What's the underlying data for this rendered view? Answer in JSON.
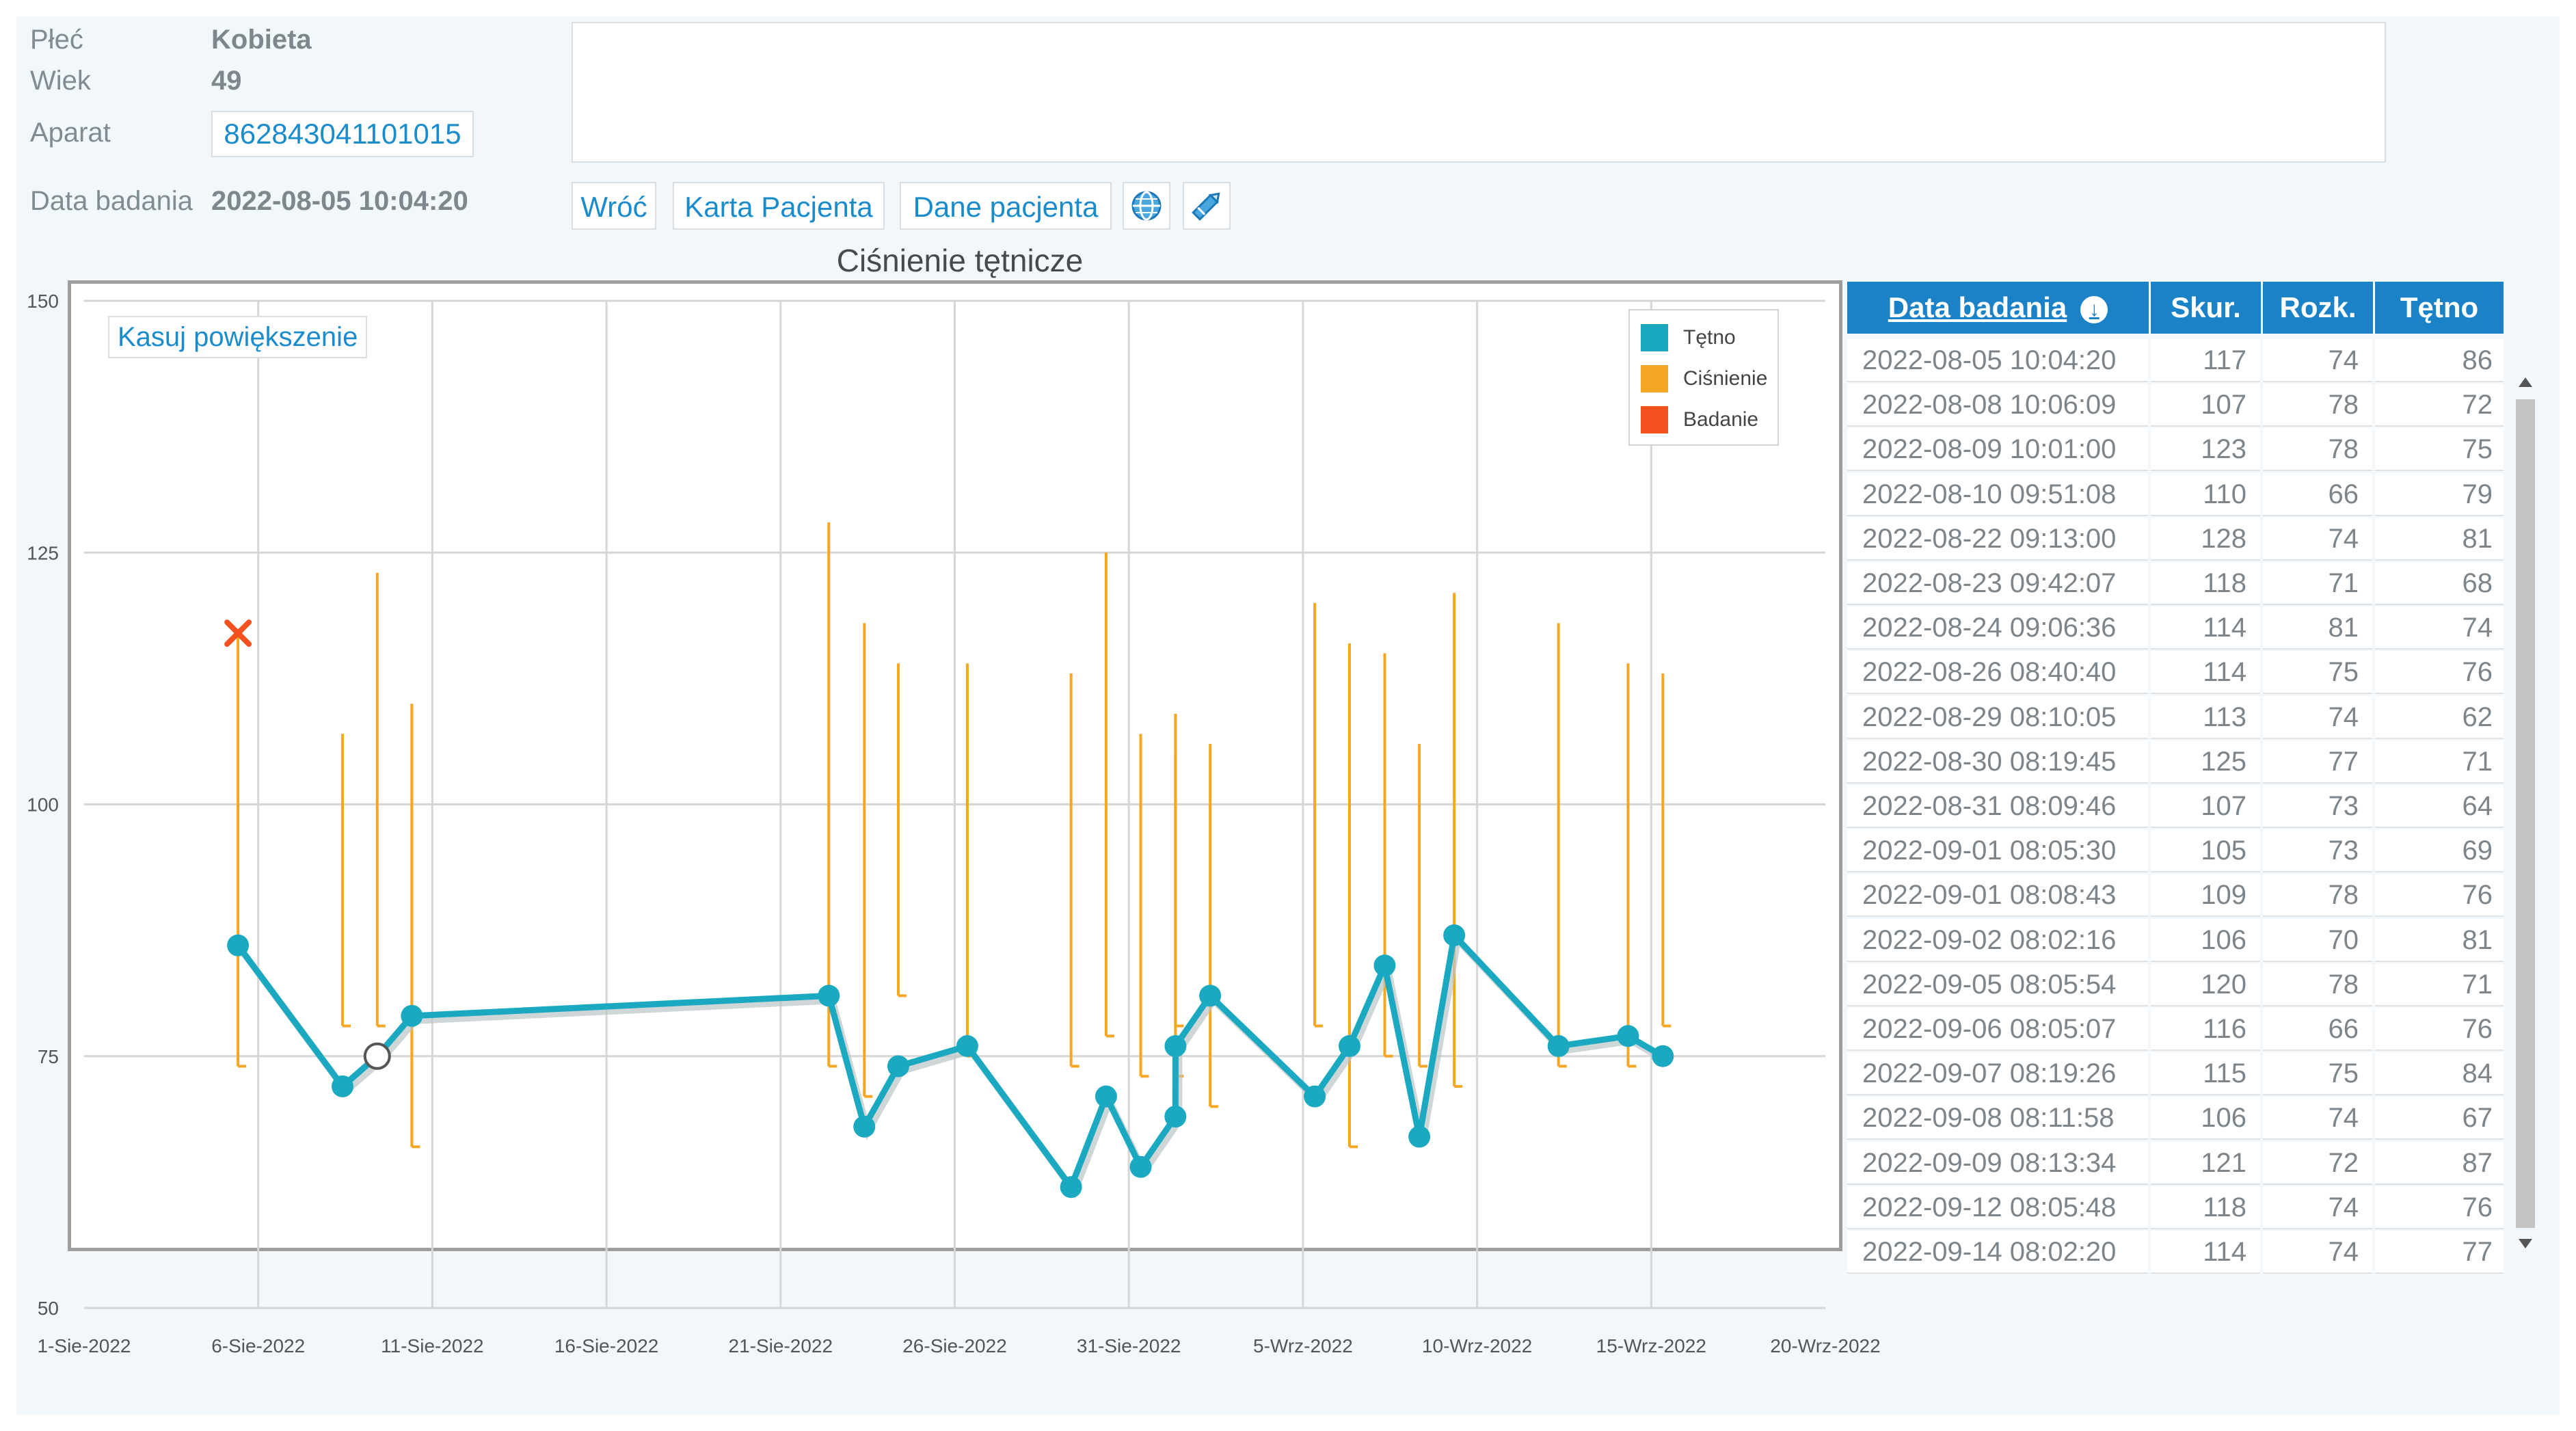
{
  "patient": {
    "sex_label": "Płeć",
    "sex_value": "Kobieta",
    "age_label": "Wiek",
    "age_value": "49",
    "device_label": "Aparat",
    "device_value": "862843041101015",
    "exam_date_label": "Data badania",
    "exam_date_value": "2022-08-05 10:04:20"
  },
  "toolbar": {
    "back": "Wróć",
    "patient_card": "Karta Pacjenta",
    "patient_data": "Dane pacjenta",
    "globe_icon": "globe-icon",
    "pencil_icon": "pencil-icon"
  },
  "chart": {
    "reset_zoom": "Kasuj powiększenie"
  },
  "chart_data": {
    "type": "line",
    "title": "Ciśnienie tętnicze",
    "ylim": [
      50,
      150
    ],
    "y_ticks": [
      "150",
      "125",
      "100",
      "75",
      "50"
    ],
    "x_ticks": [
      "1-Sie-2022",
      "6-Sie-2022",
      "11-Sie-2022",
      "16-Sie-2022",
      "21-Sie-2022",
      "26-Sie-2022",
      "31-Sie-2022",
      "5-Wrz-2022",
      "10-Wrz-2022",
      "15-Wrz-2022",
      "20-Wrz-2022"
    ],
    "legend_position": "top-right",
    "grid": true,
    "series": [
      {
        "name": "Tętno",
        "color": "#1aa9c0",
        "kind": "line-with-markers",
        "points": [
          {
            "x": "2022-08-05 10:04:20",
            "y": 86
          },
          {
            "x": "2022-08-08 10:06:09",
            "y": 72
          },
          {
            "x": "2022-08-09 10:01:00",
            "y": 75
          },
          {
            "x": "2022-08-10 09:51:08",
            "y": 79
          },
          {
            "x": "2022-08-22 09:13:00",
            "y": 81
          },
          {
            "x": "2022-08-23 09:42:07",
            "y": 68
          },
          {
            "x": "2022-08-24 09:06:36",
            "y": 74
          },
          {
            "x": "2022-08-26 08:40:40",
            "y": 76
          },
          {
            "x": "2022-08-29 08:10:05",
            "y": 62
          },
          {
            "x": "2022-08-30 08:19:45",
            "y": 71
          },
          {
            "x": "2022-08-31 08:09:46",
            "y": 64
          },
          {
            "x": "2022-09-01 08:05:30",
            "y": 69
          },
          {
            "x": "2022-09-01 08:08:43",
            "y": 76
          },
          {
            "x": "2022-09-02 08:02:16",
            "y": 81
          },
          {
            "x": "2022-09-05 08:05:54",
            "y": 71
          },
          {
            "x": "2022-09-06 08:05:07",
            "y": 76
          },
          {
            "x": "2022-09-07 08:19:26",
            "y": 84
          },
          {
            "x": "2022-09-08 08:11:58",
            "y": 67
          },
          {
            "x": "2022-09-09 08:13:34",
            "y": 87
          },
          {
            "x": "2022-09-12 08:05:48",
            "y": 76
          },
          {
            "x": "2022-09-14 08:02:20",
            "y": 77
          },
          {
            "x": "2022-09-15 08:00:00",
            "y": 75
          }
        ]
      },
      {
        "name": "Ciśnienie",
        "color": "#f5a623",
        "kind": "range-bars",
        "points": [
          {
            "x": "2022-08-05 10:04:20",
            "high": 117,
            "low": 74
          },
          {
            "x": "2022-08-08 10:06:09",
            "high": 107,
            "low": 78
          },
          {
            "x": "2022-08-09 10:01:00",
            "high": 123,
            "low": 78
          },
          {
            "x": "2022-08-10 09:51:08",
            "high": 110,
            "low": 66
          },
          {
            "x": "2022-08-22 09:13:00",
            "high": 128,
            "low": 74
          },
          {
            "x": "2022-08-23 09:42:07",
            "high": 118,
            "low": 71
          },
          {
            "x": "2022-08-24 09:06:36",
            "high": 114,
            "low": 81
          },
          {
            "x": "2022-08-26 08:40:40",
            "high": 114,
            "low": 75
          },
          {
            "x": "2022-08-29 08:10:05",
            "high": 113,
            "low": 74
          },
          {
            "x": "2022-08-30 08:19:45",
            "high": 125,
            "low": 77
          },
          {
            "x": "2022-08-31 08:09:46",
            "high": 107,
            "low": 73
          },
          {
            "x": "2022-09-01 08:05:30",
            "high": 105,
            "low": 73
          },
          {
            "x": "2022-09-01 08:08:43",
            "high": 109,
            "low": 78
          },
          {
            "x": "2022-09-02 08:02:16",
            "high": 106,
            "low": 70
          },
          {
            "x": "2022-09-05 08:05:54",
            "high": 120,
            "low": 78
          },
          {
            "x": "2022-09-06 08:05:07",
            "high": 116,
            "low": 66
          },
          {
            "x": "2022-09-07 08:19:26",
            "high": 115,
            "low": 75
          },
          {
            "x": "2022-09-08 08:11:58",
            "high": 106,
            "low": 74
          },
          {
            "x": "2022-09-09 08:13:34",
            "high": 121,
            "low": 72
          },
          {
            "x": "2022-09-12 08:05:48",
            "high": 118,
            "low": 74
          },
          {
            "x": "2022-09-14 08:02:20",
            "high": 114,
            "low": 74
          },
          {
            "x": "2022-09-15 08:00:00",
            "high": 113,
            "low": 78
          }
        ]
      },
      {
        "name": "Badanie",
        "color": "#f4511e",
        "kind": "marker",
        "points": [
          {
            "x": "2022-08-05 10:04:20",
            "y": 117
          }
        ]
      }
    ],
    "selected_point": {
      "series": "Tętno",
      "x": "2022-08-09 10:01:00",
      "y": 75
    }
  },
  "table": {
    "headers": {
      "date": "Data badania",
      "sys": "Skur.",
      "dia": "Rozk.",
      "hr": "Tętno"
    },
    "rows": [
      {
        "date": "2022-08-05 10:04:20",
        "sys": "117",
        "dia": "74",
        "hr": "86"
      },
      {
        "date": "2022-08-08 10:06:09",
        "sys": "107",
        "dia": "78",
        "hr": "72"
      },
      {
        "date": "2022-08-09 10:01:00",
        "sys": "123",
        "dia": "78",
        "hr": "75"
      },
      {
        "date": "2022-08-10 09:51:08",
        "sys": "110",
        "dia": "66",
        "hr": "79"
      },
      {
        "date": "2022-08-22 09:13:00",
        "sys": "128",
        "dia": "74",
        "hr": "81"
      },
      {
        "date": "2022-08-23 09:42:07",
        "sys": "118",
        "dia": "71",
        "hr": "68"
      },
      {
        "date": "2022-08-24 09:06:36",
        "sys": "114",
        "dia": "81",
        "hr": "74"
      },
      {
        "date": "2022-08-26 08:40:40",
        "sys": "114",
        "dia": "75",
        "hr": "76"
      },
      {
        "date": "2022-08-29 08:10:05",
        "sys": "113",
        "dia": "74",
        "hr": "62"
      },
      {
        "date": "2022-08-30 08:19:45",
        "sys": "125",
        "dia": "77",
        "hr": "71"
      },
      {
        "date": "2022-08-31 08:09:46",
        "sys": "107",
        "dia": "73",
        "hr": "64"
      },
      {
        "date": "2022-09-01 08:05:30",
        "sys": "105",
        "dia": "73",
        "hr": "69"
      },
      {
        "date": "2022-09-01 08:08:43",
        "sys": "109",
        "dia": "78",
        "hr": "76"
      },
      {
        "date": "2022-09-02 08:02:16",
        "sys": "106",
        "dia": "70",
        "hr": "81"
      },
      {
        "date": "2022-09-05 08:05:54",
        "sys": "120",
        "dia": "78",
        "hr": "71"
      },
      {
        "date": "2022-09-06 08:05:07",
        "sys": "116",
        "dia": "66",
        "hr": "76"
      },
      {
        "date": "2022-09-07 08:19:26",
        "sys": "115",
        "dia": "75",
        "hr": "84"
      },
      {
        "date": "2022-09-08 08:11:58",
        "sys": "106",
        "dia": "74",
        "hr": "67"
      },
      {
        "date": "2022-09-09 08:13:34",
        "sys": "121",
        "dia": "72",
        "hr": "87"
      },
      {
        "date": "2022-09-12 08:05:48",
        "sys": "118",
        "dia": "74",
        "hr": "76"
      },
      {
        "date": "2022-09-14 08:02:20",
        "sys": "114",
        "dia": "74",
        "hr": "77"
      }
    ]
  }
}
